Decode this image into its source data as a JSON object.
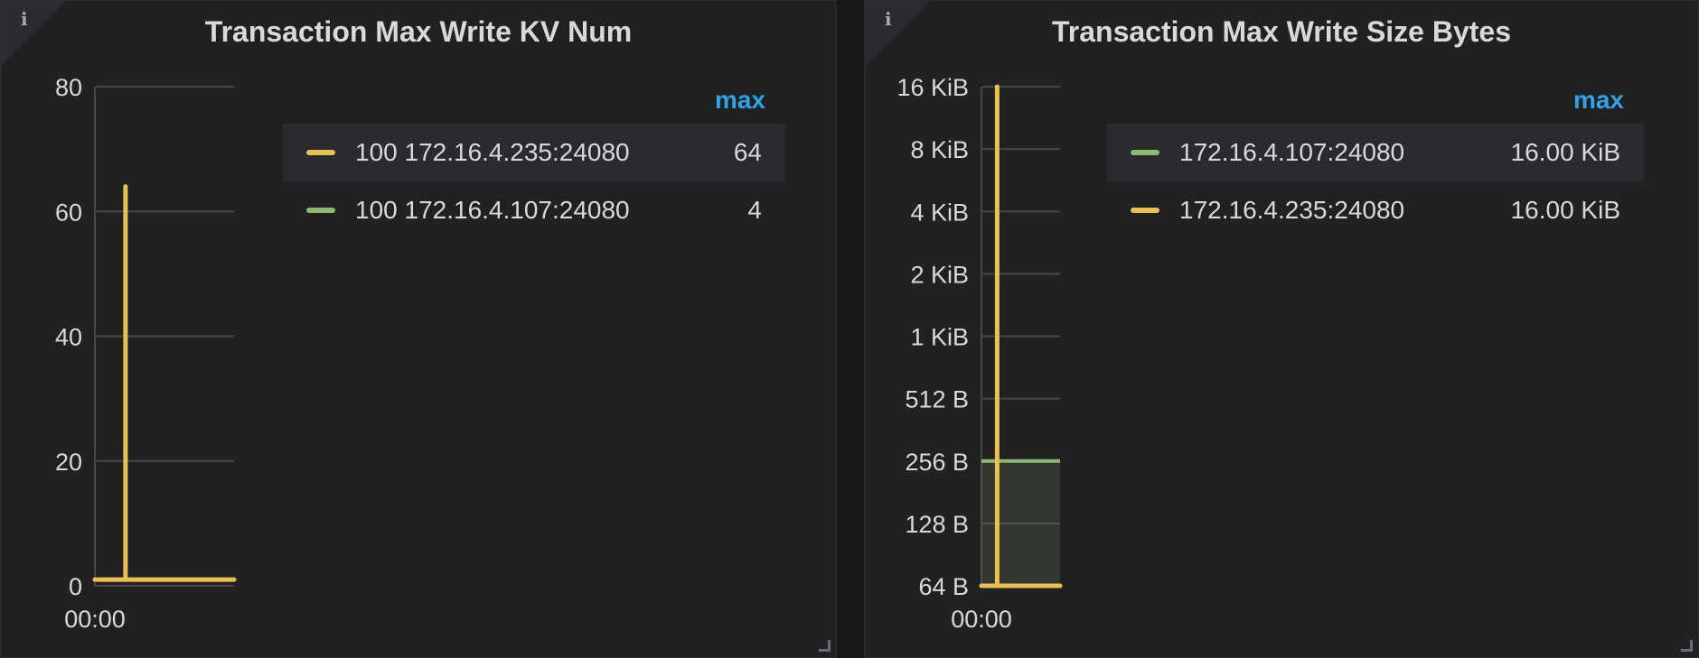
{
  "colors": {
    "series_yellow": "#eac050",
    "series_green": "#8fb870",
    "legend_header": "#33a2e5"
  },
  "panels": [
    {
      "title": "Transaction Max Write KV Num",
      "info_icon": "i",
      "legend": {
        "header": "max",
        "rows": [
          {
            "name": "100 172.16.4.235:24080",
            "value": "64",
            "color": "#eac050"
          },
          {
            "name": "100 172.16.4.107:24080",
            "value": "4",
            "color": "#8fb870"
          }
        ]
      }
    },
    {
      "title": "Transaction Max Write Size Bytes",
      "info_icon": "i",
      "legend": {
        "header": "max",
        "rows": [
          {
            "name": "172.16.4.107:24080",
            "value": "16.00 KiB",
            "color": "#8fb870"
          },
          {
            "name": "172.16.4.235:24080",
            "value": "16.00 KiB",
            "color": "#eac050"
          }
        ]
      }
    }
  ],
  "chart_data": [
    {
      "type": "line",
      "title": "Transaction Max Write KV Num",
      "x_ticks": [
        "00:00"
      ],
      "y_ticks": [
        "80",
        "60",
        "40",
        "20",
        "0"
      ],
      "ylim": [
        0,
        80
      ],
      "grid": true,
      "legend_position": "right",
      "series": [
        {
          "name": "100 172.16.4.235:24080",
          "color": "#eac050",
          "baseline": 1,
          "spike": 64,
          "spike_at": 0.22
        },
        {
          "name": "100 172.16.4.107:24080",
          "color": "#8fb870",
          "baseline": 1,
          "max": 4
        }
      ]
    },
    {
      "type": "area",
      "title": "Transaction Max Write Size Bytes",
      "y_scale": "log2",
      "x_ticks": [
        "00:00"
      ],
      "y_ticks": [
        "16 KiB",
        "8 KiB",
        "4 KiB",
        "2 KiB",
        "1 KiB",
        "512 B",
        "256 B",
        "128 B",
        "64 B"
      ],
      "ylim_bytes": [
        64,
        16384
      ],
      "grid": true,
      "legend_position": "right",
      "series": [
        {
          "name": "172.16.4.107:24080",
          "color": "#8fb870",
          "level_bytes": 256,
          "max": "16.00 KiB"
        },
        {
          "name": "172.16.4.235:24080",
          "color": "#eac050",
          "baseline_bytes": 64,
          "spike_bytes": 16384,
          "spike_at": 0.2
        }
      ]
    }
  ]
}
